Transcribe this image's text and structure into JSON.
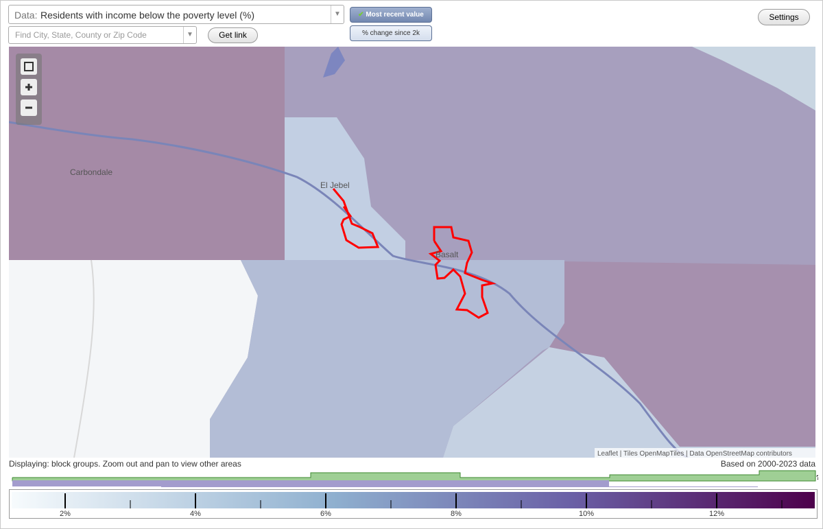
{
  "header": {
    "data_label": "Data:",
    "data_value": "Residents with income below the poverty level (%)",
    "search_placeholder": "Find City, State, County or Zip Code",
    "get_link": "Get link",
    "most_recent": "Most recent value",
    "pct_change": "% change since 2k",
    "settings": "Settings"
  },
  "map": {
    "places": [
      "Carbondale",
      "El Jebel",
      "Basalt"
    ],
    "attribution": {
      "leaflet": "Leaflet",
      "tiles": "Tiles",
      "tiles_source": "OpenMapTiles",
      "data": "Data",
      "data_source": "OpenStreetMap",
      "contributors": "contributors"
    }
  },
  "status": {
    "displaying": "Displaying: block groups. Zoom out and pan to view other areas",
    "based_on": "Based on 2000-2023 data",
    "help": "?"
  },
  "legend": {
    "ticks": [
      "2%",
      "4%",
      "6%",
      "8%",
      "10%",
      "12%"
    ]
  }
}
